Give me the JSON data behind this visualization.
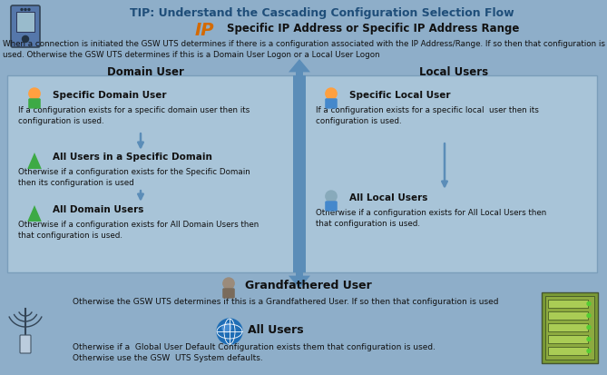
{
  "title": "TIP: Understand the Cascading Configuration Selection Flow",
  "title_color": "#1F4E79",
  "bg_color": "#8EAEC9",
  "ip_label": "IP",
  "ip_color": "#D46A00",
  "ip_desc": "Specific IP Address or Specific IP Address Range",
  "ip_desc_color": "#000000",
  "intro_text": "When a connection is initiated the GSW UTS determines if there is a configuration associated with the IP Address/Range. If so then that configuration is\nused. Otherwise the GSW UTS determines if this is a Domain User Logon or a Local User Logon",
  "domain_header": "Domain User",
  "local_header": "Local Users",
  "box_bg": "#A8C4D8",
  "box_edge": "#7A9EBA",
  "left_items": [
    {
      "title": "Specific Domain User",
      "desc": "If a configuration exists for a specific domain user then its\nconfiguration is used.",
      "icon": "person_green"
    },
    {
      "title": "All Users in a Specific Domain",
      "desc": "Otherwise if a configuration exists for the Specific Domain\nthen its configuration is used",
      "icon": "triangle_green"
    },
    {
      "title": "All Domain Users",
      "desc": "Otherwise if a configuration exists for All Domain Users then\nthat configuration is used.",
      "icon": "triangle_green"
    }
  ],
  "right_items": [
    {
      "title": "Specific Local User",
      "desc": "If a configuration exists for a specific local  user then its\nconfiguration is used.",
      "icon": "person_blue"
    },
    {
      "title": "All Local Users",
      "desc": "Otherwise if a configuration exists for All Local Users then\nthat configuration is used.",
      "icon": "person_blue_dark"
    }
  ],
  "grandfather_title": "Grandfathered User",
  "grandfather_desc": "Otherwise the GSW UTS determines if this is a Grandfathered User. If so then that configuration is used",
  "allusers_title": "All Users",
  "allusers_desc": "Otherwise if a  Global User Default Configuration exists them that configuration is used.\nOtherwise use the GSW  UTS System defaults.",
  "arrow_color": "#5B8DB8",
  "arrow_dark": "#4A7AA0",
  "text_color": "#111111"
}
